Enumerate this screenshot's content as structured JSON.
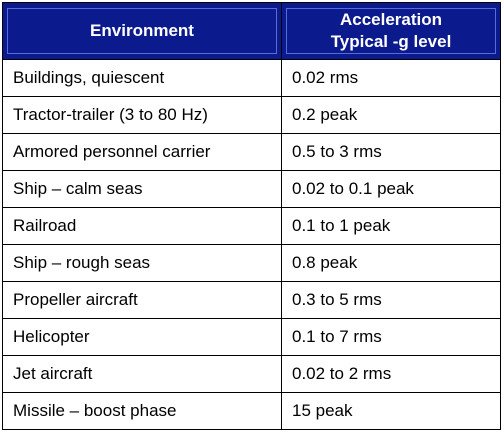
{
  "table": {
    "header": {
      "col1": "Environment",
      "col2_line1": "Acceleration",
      "col2_line2": "Typical -g level"
    },
    "rows": [
      {
        "environment": "Buildings, quiescent",
        "level": "0.02 rms"
      },
      {
        "environment": "Tractor-trailer (3 to 80 Hz)",
        "level": "0.2 peak"
      },
      {
        "environment": "Armored personnel carrier",
        "level": "0.5 to 3 rms"
      },
      {
        "environment": "Ship – calm seas",
        "level": "0.02 to 0.1 peak"
      },
      {
        "environment": "Railroad",
        "level": "0.1 to 1 peak"
      },
      {
        "environment": "Ship – rough seas",
        "level": "0.8 peak"
      },
      {
        "environment": "Propeller aircraft",
        "level": "0.3 to 5 rms"
      },
      {
        "environment": "Helicopter",
        "level": "0.1 to 7 rms"
      },
      {
        "environment": "Jet aircraft",
        "level": "0.02 to 2 rms"
      },
      {
        "environment": "Missile – boost phase",
        "level": "15 peak"
      }
    ]
  },
  "colors": {
    "header_bg": "#0b1a8c",
    "header_text": "#ffffff",
    "border": "#000000"
  }
}
